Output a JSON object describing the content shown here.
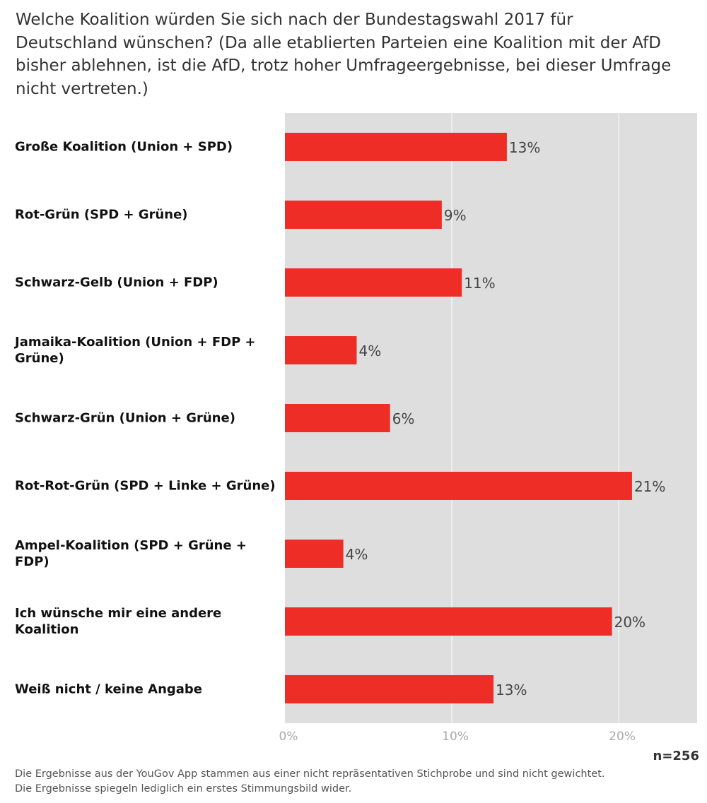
{
  "chart_data": {
    "type": "bar",
    "orientation": "horizontal",
    "title": "Welche Koalition würden Sie sich nach der Bundestagswahl 2017 für Deutschland wünschen? (Da alle etablierten Parteien eine Koalition mit der AfD bisher ablehnen, ist die AfD, trotz hoher Umfrageergebnisse, bei dieser Umfrage nicht vertreten.)",
    "categories": [
      "Große Koalition (Union + SPD)",
      "Rot-Grün (SPD + Grüne)",
      "Schwarz-Gelb (Union + FDP)",
      "Jamaika-Koalition (Union + FDP + Grüne)",
      "Schwarz-Grün (Union + Grüne)",
      "Rot-Rot-Grün (SPD + Linke + Grüne)",
      "Ampel-Koalition (SPD + Grüne + FDP)",
      "Ich wünsche mir eine andere Koalition",
      "Weiß nicht / keine Angabe"
    ],
    "values": [
      13.3,
      9.4,
      10.6,
      4.3,
      6.3,
      20.8,
      3.5,
      19.6,
      12.5
    ],
    "data_labels": [
      "13%",
      "9%",
      "11%",
      "4%",
      "6%",
      "21%",
      "4%",
      "20%",
      "13%"
    ],
    "xlim": [
      0,
      24.7
    ],
    "xticks": [
      0,
      10,
      20
    ],
    "xtick_labels": [
      "0%",
      "10%",
      "20%"
    ],
    "grid": true,
    "legend": "none",
    "colors": {
      "bar": "#ee2d27",
      "plot_bg": "#dedede",
      "grid": "#ffffff"
    }
  },
  "sample_size": "n=256",
  "footnotes": [
    "Die Ergebnisse aus der YouGov App stammen aus einer nicht repräsentativen Stichprobe und sind nicht gewichtet.",
    "Die Ergebnisse spiegeln lediglich ein erstes Stimmungsbild wider."
  ]
}
